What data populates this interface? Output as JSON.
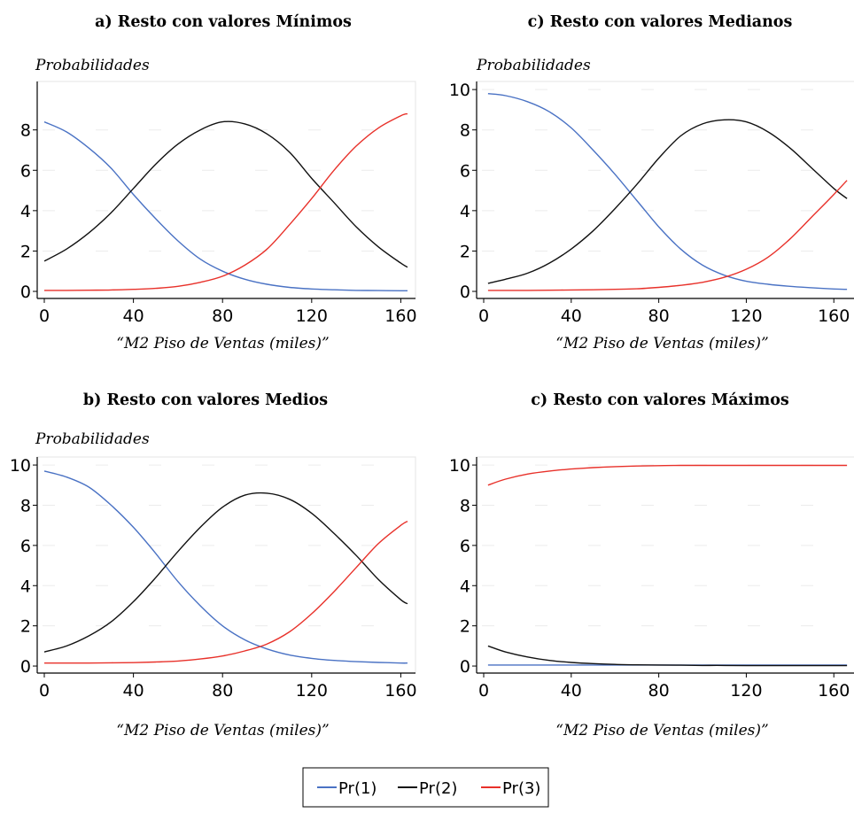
{
  "chart_data": [
    {
      "type": "line",
      "title": "a) Resto con valores Mínimos",
      "ylabel": "Probabilidades",
      "xlabel": "“M2 Piso de Ventas (miles)”",
      "xlim": [
        0,
        165
      ],
      "ylim": [
        0,
        10
      ],
      "xticks": [
        "0",
        "40",
        "80",
        "120",
        "160"
      ],
      "yticks": [
        "0",
        "2",
        "4",
        "6",
        "8"
      ],
      "grid": true,
      "x": [
        0,
        10,
        20,
        30,
        40,
        50,
        60,
        70,
        80,
        90,
        100,
        110,
        120,
        130,
        140,
        150,
        160,
        163
      ],
      "series": [
        {
          "name": "Pr(1)",
          "color": "#4a72c4",
          "values": [
            8.4,
            7.9,
            7.1,
            6.1,
            4.8,
            3.6,
            2.5,
            1.6,
            1.0,
            0.6,
            0.35,
            0.2,
            0.12,
            0.08,
            0.05,
            0.04,
            0.03,
            0.03
          ]
        },
        {
          "name": "Pr(2)",
          "color": "#111111",
          "values": [
            1.5,
            2.1,
            2.9,
            3.9,
            5.1,
            6.3,
            7.3,
            8.0,
            8.4,
            8.3,
            7.8,
            6.9,
            5.6,
            4.4,
            3.2,
            2.2,
            1.4,
            1.2
          ]
        },
        {
          "name": "Pr(3)",
          "color": "#e8312a",
          "values": [
            0.05,
            0.05,
            0.06,
            0.07,
            0.1,
            0.15,
            0.25,
            0.45,
            0.75,
            1.3,
            2.1,
            3.3,
            4.6,
            6.0,
            7.2,
            8.1,
            8.7,
            8.8
          ]
        }
      ]
    },
    {
      "type": "line",
      "title": "c) Resto con valores Medianos",
      "ylabel": "Probabilidades",
      "xlabel": "“M2 Piso de Ventas (miles)”",
      "xlim": [
        0,
        168
      ],
      "ylim": [
        0,
        10
      ],
      "xticks": [
        "0",
        "40",
        "80",
        "120",
        "160"
      ],
      "yticks": [
        "0",
        "2",
        "4",
        "6",
        "8",
        "10"
      ],
      "grid": true,
      "x": [
        2,
        10,
        20,
        30,
        40,
        50,
        60,
        70,
        80,
        90,
        100,
        110,
        120,
        130,
        140,
        150,
        160,
        166
      ],
      "series": [
        {
          "name": "Pr(1)",
          "color": "#4a72c4",
          "values": [
            9.8,
            9.7,
            9.4,
            8.9,
            8.1,
            7.0,
            5.8,
            4.5,
            3.2,
            2.1,
            1.3,
            0.8,
            0.5,
            0.35,
            0.25,
            0.18,
            0.12,
            0.1
          ]
        },
        {
          "name": "Pr(2)",
          "color": "#111111",
          "values": [
            0.4,
            0.6,
            0.9,
            1.4,
            2.1,
            3.0,
            4.1,
            5.3,
            6.6,
            7.7,
            8.3,
            8.5,
            8.4,
            7.9,
            7.1,
            6.1,
            5.1,
            4.6
          ]
        },
        {
          "name": "Pr(3)",
          "color": "#e8312a",
          "values": [
            0.05,
            0.05,
            0.05,
            0.06,
            0.07,
            0.08,
            0.1,
            0.13,
            0.2,
            0.3,
            0.45,
            0.7,
            1.1,
            1.7,
            2.6,
            3.7,
            4.8,
            5.5
          ]
        }
      ]
    },
    {
      "type": "line",
      "title": "b) Resto con valores Medios",
      "ylabel": "Probabilidades",
      "xlabel": "“M2 Piso de Ventas (miles)”",
      "xlim": [
        0,
        165
      ],
      "ylim": [
        0,
        10
      ],
      "xticks": [
        "0",
        "40",
        "80",
        "120",
        "160"
      ],
      "yticks": [
        "0",
        "2",
        "4",
        "6",
        "8",
        "10"
      ],
      "grid": true,
      "x": [
        0,
        10,
        20,
        30,
        40,
        50,
        60,
        70,
        80,
        90,
        100,
        110,
        120,
        130,
        140,
        150,
        160,
        163
      ],
      "series": [
        {
          "name": "Pr(1)",
          "color": "#4a72c4",
          "values": [
            9.7,
            9.4,
            8.9,
            8.0,
            6.9,
            5.6,
            4.2,
            3.0,
            2.0,
            1.3,
            0.85,
            0.55,
            0.38,
            0.28,
            0.22,
            0.18,
            0.15,
            0.15
          ]
        },
        {
          "name": "Pr(2)",
          "color": "#111111",
          "values": [
            0.7,
            1.0,
            1.5,
            2.2,
            3.2,
            4.4,
            5.7,
            6.9,
            7.9,
            8.5,
            8.6,
            8.3,
            7.6,
            6.6,
            5.5,
            4.3,
            3.3,
            3.1
          ]
        },
        {
          "name": "Pr(3)",
          "color": "#e8312a",
          "values": [
            0.15,
            0.15,
            0.15,
            0.16,
            0.17,
            0.2,
            0.25,
            0.35,
            0.5,
            0.75,
            1.1,
            1.7,
            2.6,
            3.7,
            4.9,
            6.1,
            7.0,
            7.2
          ]
        }
      ]
    },
    {
      "type": "line",
      "title": "c) Resto con valores Máximos",
      "ylabel": "",
      "xlabel": "“M2 Piso de Ventas (miles)”",
      "xlim": [
        0,
        168
      ],
      "ylim": [
        0,
        10
      ],
      "xticks": [
        "0",
        "40",
        "80",
        "120",
        "160"
      ],
      "yticks": [
        "0",
        "2",
        "4",
        "6",
        "8",
        "10"
      ],
      "grid": true,
      "x": [
        2,
        10,
        20,
        30,
        40,
        50,
        60,
        70,
        80,
        90,
        100,
        110,
        120,
        130,
        140,
        150,
        160,
        166
      ],
      "series": [
        {
          "name": "Pr(1)",
          "color": "#4a72c4",
          "values": [
            0.05,
            0.05,
            0.05,
            0.05,
            0.05,
            0.05,
            0.05,
            0.05,
            0.05,
            0.05,
            0.05,
            0.05,
            0.05,
            0.05,
            0.05,
            0.05,
            0.05,
            0.05
          ]
        },
        {
          "name": "Pr(2)",
          "color": "#111111",
          "values": [
            1.0,
            0.7,
            0.45,
            0.28,
            0.18,
            0.12,
            0.08,
            0.06,
            0.05,
            0.04,
            0.03,
            0.03,
            0.02,
            0.02,
            0.02,
            0.02,
            0.02,
            0.02
          ]
        },
        {
          "name": "Pr(3)",
          "color": "#e8312a",
          "values": [
            9.0,
            9.3,
            9.55,
            9.7,
            9.8,
            9.87,
            9.92,
            9.95,
            9.97,
            9.98,
            9.98,
            9.98,
            9.98,
            9.98,
            9.98,
            9.98,
            9.98,
            9.98
          ]
        }
      ]
    }
  ],
  "legend": {
    "placement": "bottom-center",
    "items": [
      {
        "label": "Pr(1)",
        "color": "#4a72c4"
      },
      {
        "label": "Pr(2)",
        "color": "#111111"
      },
      {
        "label": "Pr(3)",
        "color": "#e8312a"
      }
    ]
  }
}
